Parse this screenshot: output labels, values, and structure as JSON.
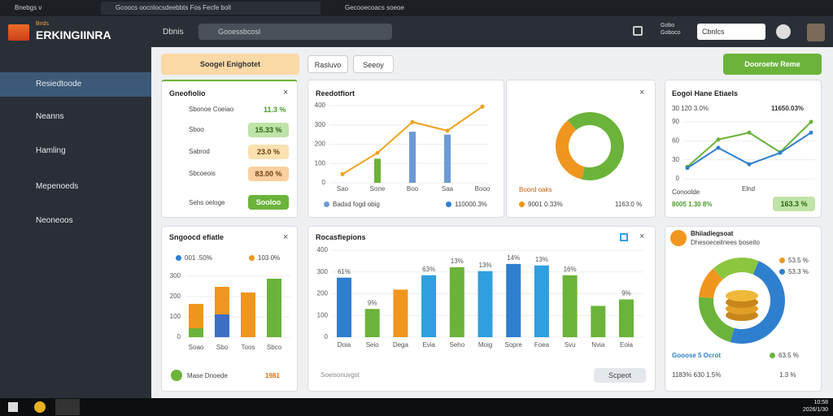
{
  "browser": {
    "tabs": [
      "Bnebgs v",
      "Gcoocs oocnlocsdeebbts Fos Fecfe boll",
      "Gecooecoacs soeoe"
    ]
  },
  "header": {
    "logo_top": "Bnds",
    "logo": "ERKINGIINRA",
    "menu": "Dbnis",
    "search": "Gooessbcosl",
    "user": [
      "Gobo",
      "Goboco"
    ],
    "input": "Cbnlcs"
  },
  "sidebar": {
    "items": [
      "Resiedtoode",
      "Neanns",
      "Hamling",
      "Mepenoeds",
      "Neoneoos"
    ]
  },
  "toolbar": {
    "filter": "Soogel Enighotet",
    "tabs": [
      "Rasluvo",
      "Seeoy"
    ],
    "action": "Dooroetw Reme"
  },
  "portfolio": {
    "title": "Gneofiolio",
    "rows": [
      {
        "label": "Sbonoe Coeiao",
        "value": "11.3 %"
      },
      {
        "label": "Sboo",
        "value": "15.33 %"
      },
      {
        "label": "Sabrod",
        "value": "23.0 %"
      },
      {
        "label": "Sbcoeois",
        "value": "83.00 %"
      }
    ],
    "footer": "Sehs oeloge",
    "button": "Sooloo"
  },
  "report": {
    "title": "Reedotfiort",
    "categories": [
      "Sao",
      "Sone",
      "Boo",
      "Saa",
      "Booo"
    ],
    "ylim": [
      0,
      400
    ],
    "yticks": [
      0,
      100,
      200,
      300,
      400
    ],
    "line": {
      "color": "#f0a020",
      "values": [
        45,
        155,
        315,
        270,
        395
      ]
    },
    "bars": {
      "values": [
        null,
        125,
        265,
        250,
        null
      ],
      "colors": [
        null,
        "#6bb33a",
        "#6e9ad4",
        "#6e9ad4",
        null
      ]
    },
    "legend": [
      "Badsd fogd obig",
      "110000.3%"
    ]
  },
  "share": {
    "values": [
      35,
      65
    ],
    "colors": [
      "#f0961e",
      "#6bb33a"
    ],
    "legend": [
      "Boord oaks",
      "9001 0.33%",
      "1163.0 %"
    ]
  },
  "trend": {
    "title": "Eogoi Hane Etiaels",
    "subtitle": "30 120 3.0%",
    "total": "11650.03%",
    "ylim": [
      0,
      90
    ],
    "yticks": [
      0,
      30,
      60,
      90
    ],
    "series": [
      {
        "color": "#6bb33a",
        "values": [
          19,
          62,
          73,
          42,
          90
        ]
      },
      {
        "color": "#2f7fcf",
        "values": [
          17,
          49,
          23,
          41,
          73
        ]
      }
    ],
    "footer": [
      "Conoolde",
      "Elnd"
    ],
    "stats": [
      "8005 1.30 8%",
      "163.3 %"
    ]
  },
  "stacked": {
    "title": "Sngoocd efiatle",
    "legend": [
      {
        "text": "001 .50%",
        "color": "#2f7fcf"
      },
      {
        "text": "103 0%",
        "color": "#f0961e"
      }
    ],
    "ylim": [
      0,
      300
    ],
    "yticks": [
      0,
      100,
      200,
      300
    ],
    "categories": [
      "Soao",
      "Sbo",
      "Toos",
      "Sbco"
    ],
    "series": [
      {
        "color": "#6bb33a",
        "values": [
          44,
          0,
          0,
          288
        ]
      },
      {
        "color": "#3d6fc4",
        "values": [
          0,
          112,
          0,
          0
        ]
      },
      {
        "color": "#f0961e",
        "values": [
          120,
          136,
          220,
          0
        ]
      }
    ],
    "footer": "Mase Dnoede",
    "footer_value": "1981"
  },
  "bars": {
    "title": "Rocasfiepions",
    "ylim": [
      0,
      400
    ],
    "yticks": [
      0,
      100,
      200,
      300,
      400
    ],
    "categories": [
      "Doia",
      "Seio",
      "Dega",
      "Evia",
      "Seho",
      "Moig",
      "Sopre",
      "Foea",
      "Svu",
      "Nvia",
      "Eoia"
    ],
    "values": [
      274,
      130,
      219,
      285,
      322,
      304,
      337,
      330,
      285,
      144,
      174
    ],
    "colors": [
      "#2f7fcf",
      "#6bb33a",
      "#f0961e",
      "#2f9fdf",
      "#6bb33a",
      "#2f9fdf",
      "#2f7fcf",
      "#2f9fdf",
      "#6bb33a",
      "#6bb33a",
      "#6bb33a"
    ],
    "tags": [
      "61%",
      "9%",
      null,
      "63%",
      "13%",
      "13%",
      "14%",
      "13%",
      "16%",
      null,
      "9%"
    ],
    "footer": "Soeisonuvgst",
    "button": "Scpeot"
  },
  "mix": {
    "title": "Bhiiadiegsoat",
    "subtitle": "Dhesoeceilnees boseito",
    "values": [
      48,
      22,
      12,
      18
    ],
    "colors": [
      "#2f7fcf",
      "#6bb33a",
      "#f0961e",
      "#8cc63f"
    ],
    "legend": [
      "53.5 %",
      "53.3 %",
      "Gooose 5 Ocrot",
      "63.5 %",
      "1183% 630 1.5%",
      "1.3 %"
    ]
  },
  "taskbar": {
    "time": "10:58",
    "date": "2026/1/30"
  }
}
